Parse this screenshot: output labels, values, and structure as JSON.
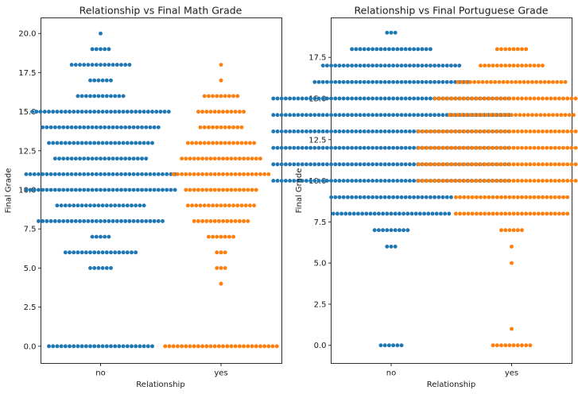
{
  "chart_data": [
    {
      "type": "swarm",
      "title": "Relationship vs Final Math Grade",
      "xlabel": "Relationship",
      "ylabel": "Final Grade",
      "categories": [
        "no",
        "yes"
      ],
      "ylim": [
        -1.1,
        21.0
      ],
      "yticks": [
        "0.0",
        "2.5",
        "5.0",
        "7.5",
        "10.0",
        "12.5",
        "15.0",
        "17.5",
        "20.0"
      ],
      "series": [
        {
          "category": "no",
          "color": "#1f77b4",
          "counts": [
            {
              "grade": 0,
              "n": 26
            },
            {
              "grade": 5,
              "n": 6
            },
            {
              "grade": 6,
              "n": 18
            },
            {
              "grade": 7,
              "n": 5
            },
            {
              "grade": 8,
              "n": 31
            },
            {
              "grade": 9,
              "n": 22
            },
            {
              "grade": 10,
              "n": 37
            },
            {
              "grade": 11,
              "n": 37
            },
            {
              "grade": 12,
              "n": 23
            },
            {
              "grade": 13,
              "n": 26
            },
            {
              "grade": 14,
              "n": 29
            },
            {
              "grade": 15,
              "n": 34
            },
            {
              "grade": 16,
              "n": 12
            },
            {
              "grade": 17,
              "n": 6
            },
            {
              "grade": 18,
              "n": 15
            },
            {
              "grade": 19,
              "n": 5
            },
            {
              "grade": 20,
              "n": 1
            }
          ]
        },
        {
          "category": "yes",
          "color": "#ff7f0e",
          "counts": [
            {
              "grade": 0,
              "n": 28
            },
            {
              "grade": 4,
              "n": 1
            },
            {
              "grade": 5,
              "n": 3
            },
            {
              "grade": 6,
              "n": 3
            },
            {
              "grade": 7,
              "n": 7
            },
            {
              "grade": 8,
              "n": 14
            },
            {
              "grade": 9,
              "n": 17
            },
            {
              "grade": 10,
              "n": 18
            },
            {
              "grade": 11,
              "n": 24
            },
            {
              "grade": 12,
              "n": 20
            },
            {
              "grade": 13,
              "n": 17
            },
            {
              "grade": 14,
              "n": 11
            },
            {
              "grade": 15,
              "n": 12
            },
            {
              "grade": 16,
              "n": 9
            },
            {
              "grade": 17,
              "n": 1
            },
            {
              "grade": 18,
              "n": 1
            }
          ]
        }
      ]
    },
    {
      "type": "swarm",
      "title": "Relationship vs Final Portuguese Grade",
      "xlabel": "Relationship",
      "ylabel": "Final Grade",
      "categories": [
        "no",
        "yes"
      ],
      "ylim": [
        -1.1,
        19.9
      ],
      "yticks": [
        "0.0",
        "2.5",
        "5.0",
        "7.5",
        "10.0",
        "12.5",
        "15.0",
        "17.5"
      ],
      "series": [
        {
          "category": "no",
          "color": "#1f77b4",
          "counts": [
            {
              "grade": 0,
              "n": 6
            },
            {
              "grade": 6,
              "n": 3
            },
            {
              "grade": 7,
              "n": 9
            },
            {
              "grade": 8,
              "n": 29
            },
            {
              "grade": 9,
              "n": 30
            },
            {
              "grade": 10,
              "n": 58
            },
            {
              "grade": 11,
              "n": 58
            },
            {
              "grade": 12,
              "n": 58
            },
            {
              "grade": 13,
              "n": 58
            },
            {
              "grade": 14,
              "n": 58
            },
            {
              "grade": 15,
              "n": 58
            },
            {
              "grade": 16,
              "n": 38
            },
            {
              "grade": 17,
              "n": 34
            },
            {
              "grade": 18,
              "n": 20
            },
            {
              "grade": 19,
              "n": 3
            }
          ]
        },
        {
          "category": "yes",
          "color": "#ff7f0e",
          "counts": [
            {
              "grade": 0,
              "n": 10
            },
            {
              "grade": 1,
              "n": 1
            },
            {
              "grade": 5,
              "n": 1
            },
            {
              "grade": 6,
              "n": 1
            },
            {
              "grade": 7,
              "n": 6
            },
            {
              "grade": 8,
              "n": 28
            },
            {
              "grade": 9,
              "n": 28
            },
            {
              "grade": 10,
              "n": 46
            },
            {
              "grade": 11,
              "n": 46
            },
            {
              "grade": 12,
              "n": 46
            },
            {
              "grade": 13,
              "n": 46
            },
            {
              "grade": 14,
              "n": 31
            },
            {
              "grade": 15,
              "n": 38
            },
            {
              "grade": 16,
              "n": 27
            },
            {
              "grade": 17,
              "n": 16
            },
            {
              "grade": 18,
              "n": 8
            }
          ]
        }
      ]
    }
  ]
}
